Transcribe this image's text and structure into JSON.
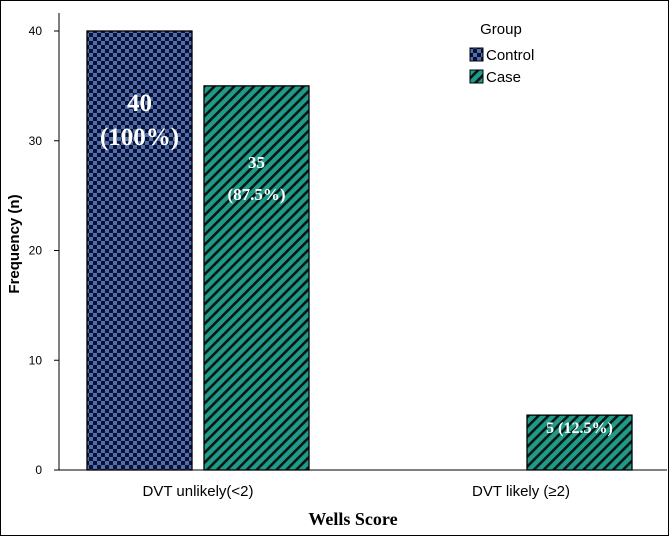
{
  "chart_data": {
    "type": "bar",
    "categories": [
      "DVT unlikely(<2)",
      "DVT likely (≥2)"
    ],
    "series": [
      {
        "name": "Control",
        "values": [
          40,
          0
        ],
        "color": "#4f6fb0",
        "pattern": "checker",
        "labels": [
          [
            "40",
            "(100%)"
          ],
          []
        ]
      },
      {
        "name": "Case",
        "values": [
          35,
          5
        ],
        "color": "#1f9b8a",
        "pattern": "diagonal",
        "labels": [
          [
            "35",
            "(87.5%)"
          ],
          [
            "5 (12.5%)"
          ]
        ]
      }
    ],
    "xlabel": "Wells Score",
    "ylabel": "Frequency (n)",
    "ylim": [
      0,
      40
    ],
    "yticks": [
      0,
      10,
      20,
      30,
      40
    ],
    "legend": {
      "title": "Group",
      "position": "top-right"
    },
    "grid": false
  }
}
